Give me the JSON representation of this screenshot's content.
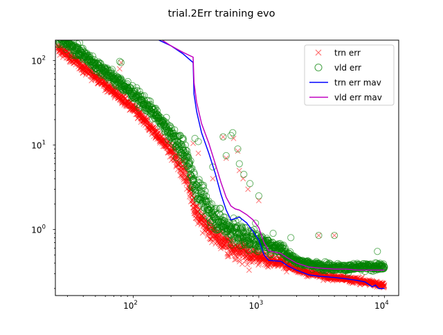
{
  "chart_data": {
    "type": "scatter",
    "title": "trial.2Err training evo",
    "xlabel": "",
    "ylabel": "",
    "xscale": "log",
    "yscale": "log",
    "xlim": [
      24,
      13000
    ],
    "ylim": [
      0.165,
      175
    ],
    "x_ticks": [
      {
        "value": 100,
        "base": "10",
        "exp": "2"
      },
      {
        "value": 1000,
        "base": "10",
        "exp": "3"
      },
      {
        "value": 10000,
        "base": "10",
        "exp": "4"
      }
    ],
    "y_ticks": [
      {
        "value": 1,
        "base": "10",
        "exp": "0"
      },
      {
        "value": 10,
        "base": "10",
        "exp": "1"
      },
      {
        "value": 100,
        "base": "10",
        "exp": "2"
      }
    ],
    "grid": false,
    "legend_position": "top-right",
    "series": [
      {
        "name": "trn err",
        "kind": "markers",
        "marker": "x",
        "color": "#ff0000",
        "x": [
          25,
          30,
          35,
          40,
          50,
          60,
          70,
          80,
          100,
          120,
          150,
          200,
          250,
          280,
          300,
          350,
          400,
          500,
          600,
          700,
          800,
          1000,
          1200,
          1500,
          1700,
          2000,
          3000,
          4000,
          5000,
          7000,
          10000
        ],
        "y": [
          140,
          118,
          98,
          84,
          65,
          52,
          43,
          36,
          27,
          20,
          14,
          8.5,
          5.2,
          3.4,
          2.0,
          1.3,
          1.0,
          0.75,
          0.63,
          0.56,
          0.52,
          0.47,
          0.44,
          0.42,
          0.38,
          0.33,
          0.29,
          0.27,
          0.26,
          0.24,
          0.22
        ]
      },
      {
        "name": "vld err",
        "kind": "markers",
        "marker": "o",
        "color": "#008000",
        "x": [
          25,
          30,
          35,
          40,
          50,
          60,
          70,
          80,
          100,
          120,
          150,
          200,
          250,
          280,
          300,
          350,
          400,
          500,
          600,
          700,
          800,
          1000,
          1200,
          1500,
          1700,
          2000,
          3000,
          4000,
          5000,
          7000,
          10000
        ],
        "y": [
          190,
          160,
          138,
          118,
          90,
          75,
          62,
          53,
          41,
          32,
          23,
          13.5,
          8.6,
          5.8,
          3.8,
          2.4,
          1.7,
          1.2,
          1.0,
          0.88,
          0.8,
          0.72,
          0.65,
          0.6,
          0.5,
          0.42,
          0.37,
          0.36,
          0.35,
          0.36,
          0.36
        ]
      },
      {
        "name": "trn err mav",
        "kind": "line",
        "color": "#0000ff",
        "x": [
          160,
          200,
          250,
          300,
          305,
          320,
          350,
          400,
          450,
          500,
          550,
          600,
          650,
          700,
          800,
          900,
          1000,
          1100,
          1200,
          1500,
          1700,
          2000,
          2500,
          3000,
          4000,
          5000,
          6000,
          7000,
          8000,
          8500,
          9000,
          10000
        ],
        "y": [
          175,
          150,
          120,
          95,
          40,
          25,
          14,
          8.0,
          4.6,
          2.6,
          1.7,
          1.3,
          1.35,
          1.4,
          1.2,
          0.95,
          0.75,
          0.5,
          0.43,
          0.42,
          0.37,
          0.33,
          0.29,
          0.28,
          0.27,
          0.26,
          0.25,
          0.24,
          0.21,
          0.22,
          0.2,
          0.2
        ]
      },
      {
        "name": "vld err mav",
        "kind": "line",
        "color": "#c000c0",
        "x": [
          170,
          200,
          250,
          300,
          305,
          320,
          350,
          400,
          450,
          500,
          550,
          600,
          650,
          700,
          800,
          900,
          1000,
          1100,
          1200,
          1500,
          1700,
          2000,
          2500,
          3000,
          4000,
          5000,
          6000,
          7000,
          8000,
          9000,
          10000
        ],
        "y": [
          175,
          150,
          125,
          110,
          55,
          32,
          18,
          10.5,
          6.0,
          3.6,
          2.4,
          1.9,
          1.75,
          1.7,
          1.5,
          1.3,
          1.05,
          0.7,
          0.56,
          0.52,
          0.46,
          0.4,
          0.36,
          0.35,
          0.34,
          0.34,
          0.33,
          0.33,
          0.33,
          0.33,
          0.33
        ]
      }
    ],
    "outliers": {
      "trn": [
        [
          78,
          80
        ],
        [
          80,
          95
        ],
        [
          160,
          20
        ],
        [
          300,
          10.5
        ],
        [
          330,
          8
        ],
        [
          430,
          4
        ],
        [
          520,
          12.5
        ],
        [
          550,
          7
        ],
        [
          630,
          12
        ],
        [
          680,
          8.5
        ],
        [
          700,
          5
        ],
        [
          750,
          4
        ],
        [
          820,
          3
        ],
        [
          1000,
          2.2
        ],
        [
          3000,
          0.85
        ],
        [
          4000,
          0.85
        ]
      ],
      "vld": [
        [
          78,
          98
        ],
        [
          80,
          95
        ],
        [
          160,
          22
        ],
        [
          250,
          12
        ],
        [
          310,
          12
        ],
        [
          330,
          11
        ],
        [
          430,
          5.5
        ],
        [
          520,
          12.5
        ],
        [
          550,
          7.5
        ],
        [
          600,
          13
        ],
        [
          620,
          14
        ],
        [
          680,
          9
        ],
        [
          700,
          6
        ],
        [
          760,
          4.5
        ],
        [
          850,
          3.5
        ],
        [
          1000,
          2.5
        ],
        [
          1300,
          0.9
        ],
        [
          1800,
          0.8
        ],
        [
          3000,
          0.85
        ],
        [
          4000,
          0.85
        ],
        [
          8800,
          0.55
        ]
      ]
    }
  }
}
